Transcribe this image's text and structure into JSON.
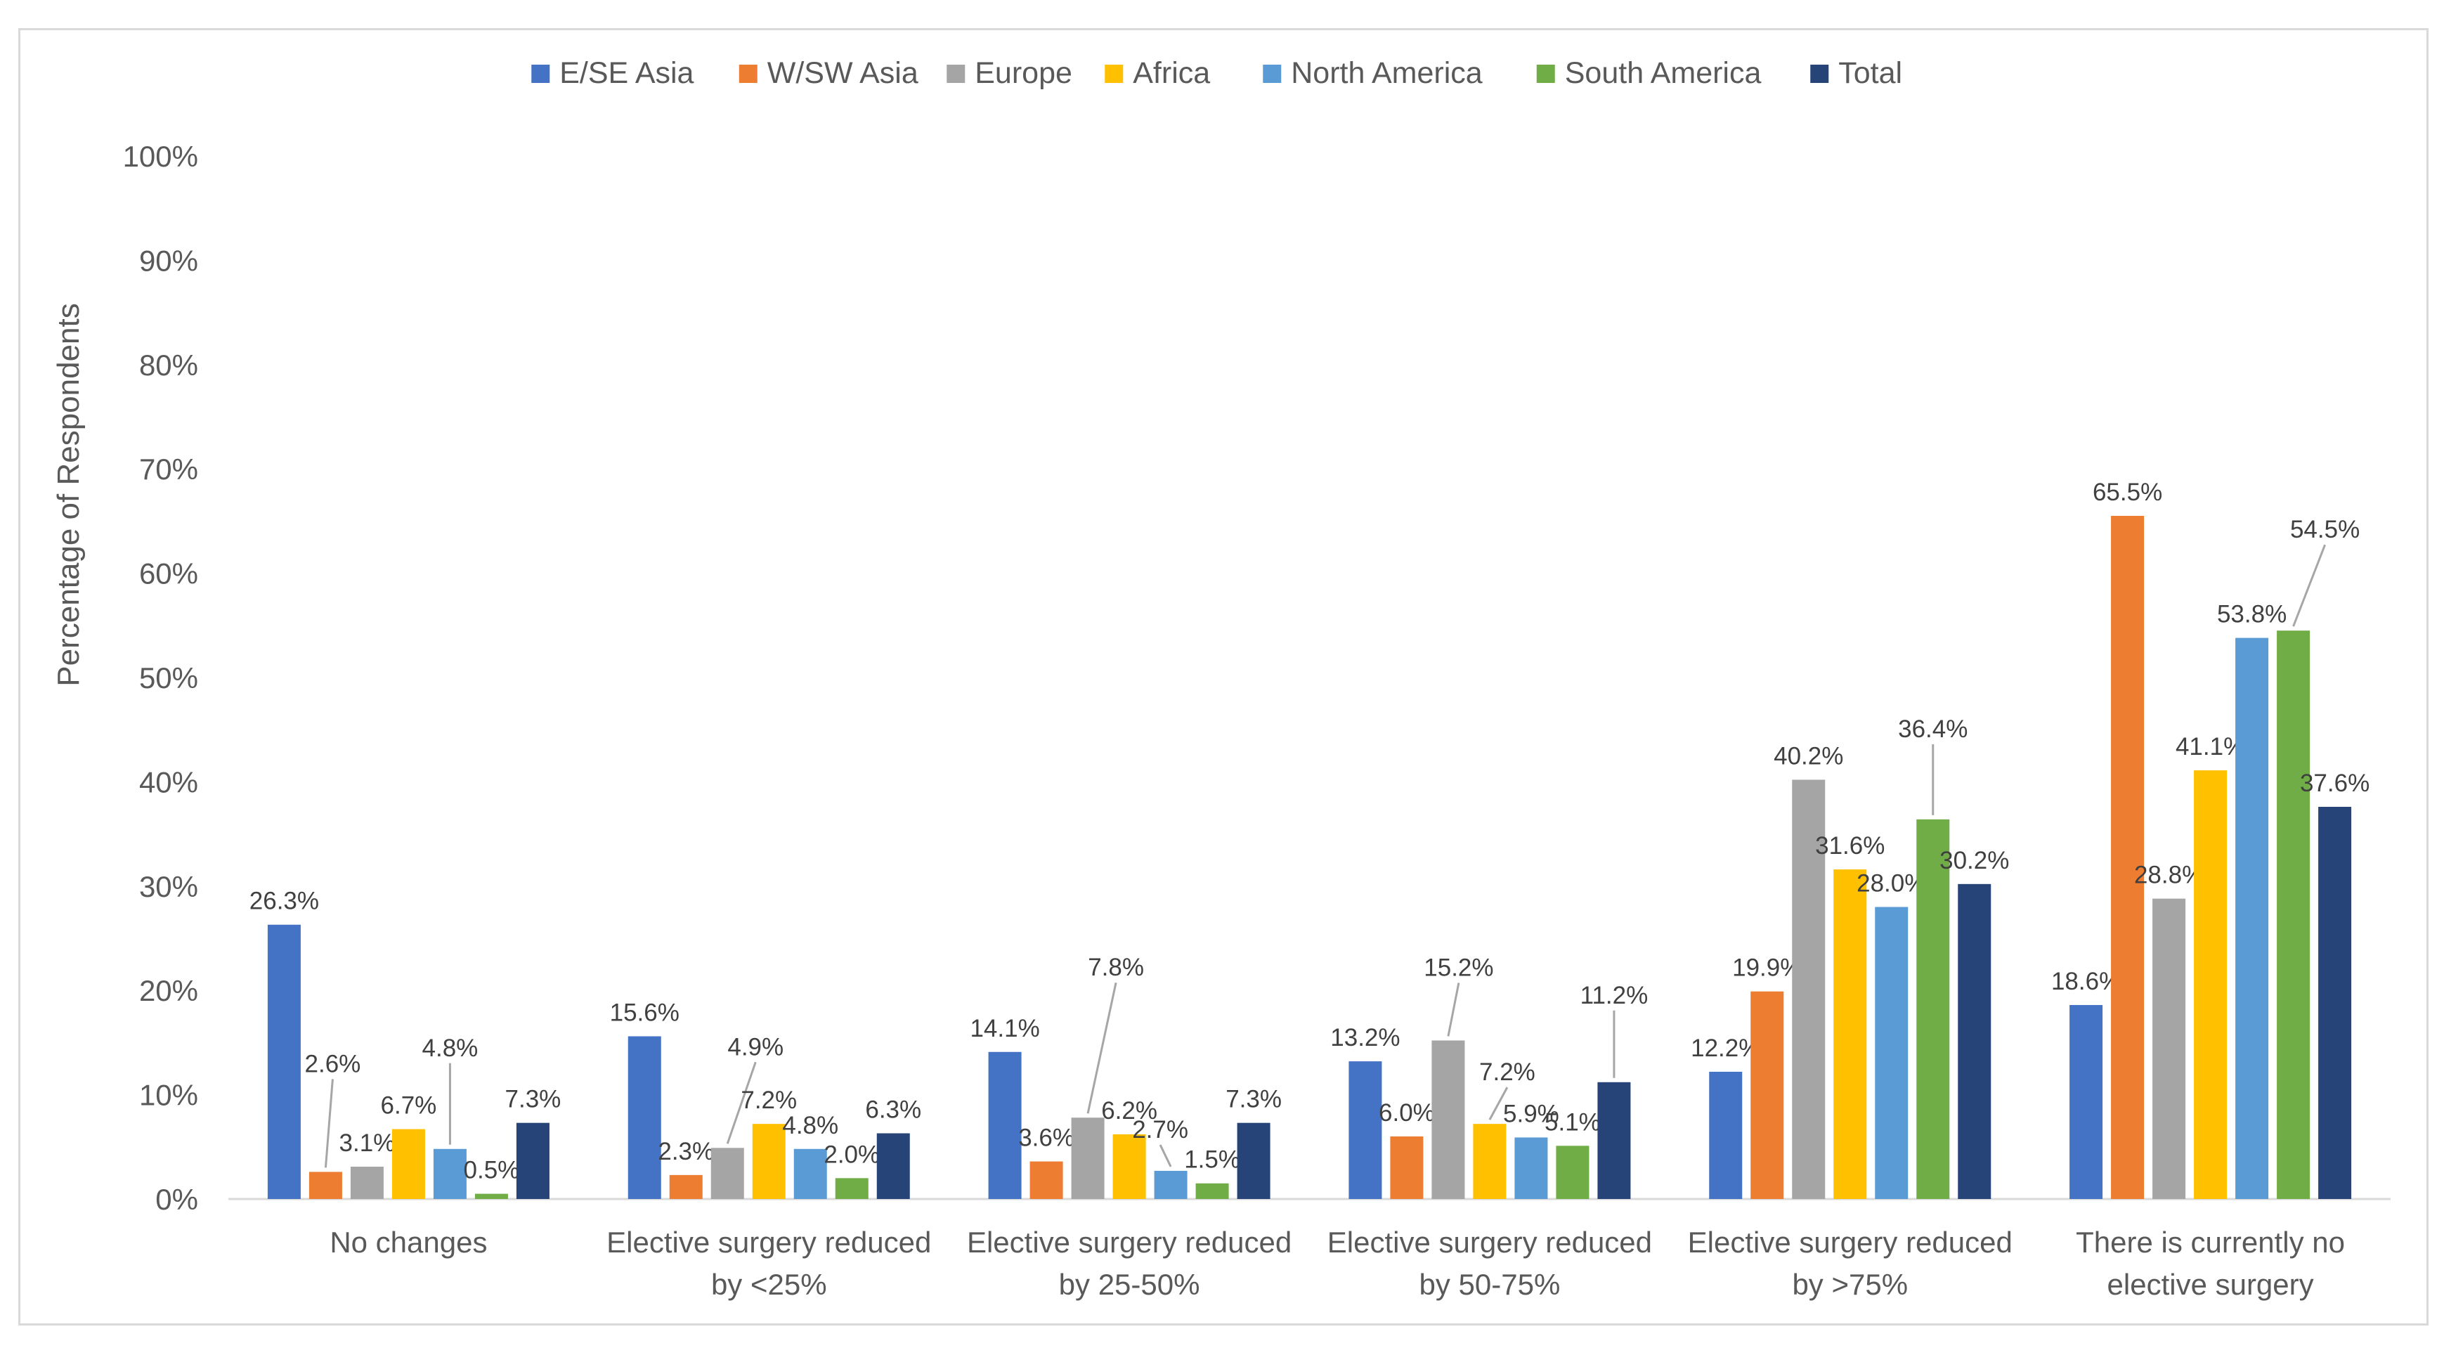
{
  "chart_data": {
    "type": "bar",
    "title": "",
    "xlabel": "",
    "ylabel": "Percentage of Respondents",
    "ylim": [
      0,
      100
    ],
    "yticks": [
      "0%",
      "10%",
      "20%",
      "30%",
      "40%",
      "50%",
      "60%",
      "70%",
      "80%",
      "90%",
      "100%"
    ],
    "legend_position": "top",
    "categories": [
      [
        "No changes"
      ],
      [
        "Elective surgery reduced",
        "by <25%"
      ],
      [
        "Elective surgery reduced",
        "by 25-50%"
      ],
      [
        "Elective surgery reduced",
        "by 50-75%"
      ],
      [
        "Elective surgery reduced",
        "by >75%"
      ],
      [
        "There is currently no",
        "elective surgery"
      ]
    ],
    "series": [
      {
        "name": "E/SE Asia",
        "color": "#4472c4",
        "values": [
          26.3,
          15.6,
          14.1,
          13.2,
          12.2,
          18.6
        ],
        "labels": [
          "26.3%",
          "15.6%",
          "14.1%",
          "13.2%",
          "12.2%",
          "18.6%"
        ]
      },
      {
        "name": "W/SW Asia",
        "color": "#ed7d31",
        "values": [
          2.6,
          2.3,
          3.6,
          6.0,
          19.9,
          65.5
        ],
        "labels": [
          "2.6%",
          "2.3%",
          "3.6%",
          "6.0%",
          "19.9%",
          "65.5%"
        ]
      },
      {
        "name": "Europe",
        "color": "#a5a5a5",
        "values": [
          3.1,
          4.9,
          7.8,
          15.2,
          40.2,
          28.8
        ],
        "labels": [
          "3.1%",
          "4.9%",
          "7.8%",
          "15.2%",
          "40.2%",
          "28.8%"
        ]
      },
      {
        "name": "Africa",
        "color": "#ffc000",
        "values": [
          6.7,
          7.2,
          6.2,
          7.2,
          31.6,
          41.1
        ],
        "labels": [
          "6.7%",
          "7.2%",
          "6.2%",
          "7.2%",
          "31.6%",
          "41.1%"
        ]
      },
      {
        "name": "North America",
        "color": "#5b9bd5",
        "values": [
          4.8,
          4.8,
          2.7,
          5.9,
          28.0,
          53.8
        ],
        "labels": [
          "4.8%",
          "4.8%",
          "2.7%",
          "5.9%",
          "28.0%",
          "53.8%"
        ]
      },
      {
        "name": "South America",
        "color": "#70ad47",
        "values": [
          0.5,
          2.0,
          1.5,
          5.1,
          36.4,
          54.5
        ],
        "labels": [
          "0.5%",
          "2.0%",
          "1.5%",
          "5.1%",
          "36.4%",
          "54.5%"
        ]
      },
      {
        "name": "Total",
        "color": "#264478",
        "values": [
          7.3,
          6.3,
          7.3,
          11.2,
          30.2,
          37.6
        ],
        "labels": [
          "7.3%",
          "6.3%",
          "7.3%",
          "11.2%",
          "30.2%",
          "37.6%"
        ]
      }
    ]
  }
}
